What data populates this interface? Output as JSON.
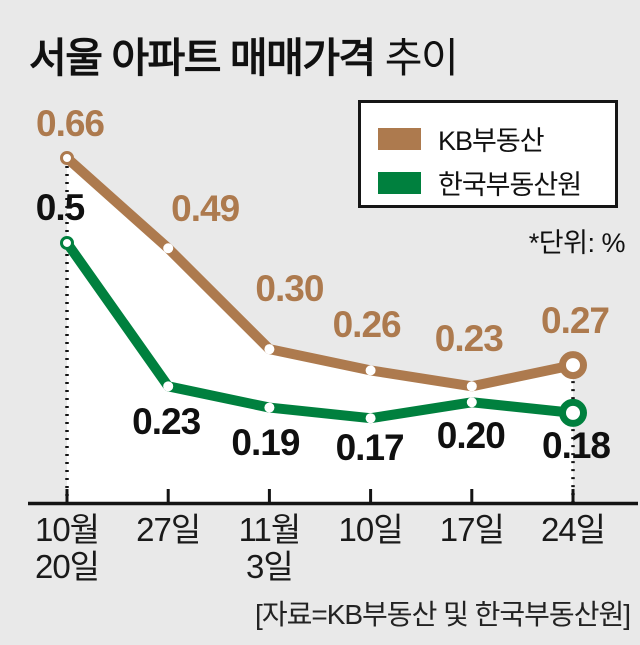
{
  "title": {
    "main": "서울 아파트 매매가격",
    "suffix": "추이"
  },
  "legend": {
    "items": [
      {
        "label": "KB부동산",
        "color": "#ad7a4e"
      },
      {
        "label": "한국부동산원",
        "color": "#00803e"
      }
    ]
  },
  "unit_note": "*단위: %",
  "source": "[자료=KB부동산 및 한국부동산원]",
  "chart_data": {
    "type": "line",
    "title": "서울 아파트 매매가격 추이",
    "unit": "%",
    "categories": [
      "10월 20일",
      "27일",
      "11월 3일",
      "10일",
      "17일",
      "24일"
    ],
    "x_tick_labels": [
      "10월\n20일",
      "27일",
      "11월\n3일",
      "10일",
      "17일",
      "24일"
    ],
    "series": [
      {
        "name": "KB부동산",
        "color": "#ad7a4e",
        "values": [
          0.66,
          0.49,
          0.3,
          0.26,
          0.23,
          0.27
        ],
        "display_labels": [
          "0.66",
          "0.49",
          "0.30",
          "0.26",
          "0.23",
          "0.27"
        ]
      },
      {
        "name": "한국부동산원",
        "color": "#00803e",
        "values": [
          0.5,
          0.23,
          0.19,
          0.17,
          0.2,
          0.18
        ],
        "display_labels": [
          "0.5",
          "0.23",
          "0.19",
          "0.17",
          "0.20",
          "0.18"
        ]
      }
    ],
    "ylim": [
      0,
      0.7
    ],
    "grid": false,
    "legend_position": "top-right"
  },
  "colors": {
    "background": "#e9e9e9",
    "plot_fill": "#ffffff",
    "axis": "#141414",
    "text": "#111111",
    "source_text": "#232323"
  }
}
